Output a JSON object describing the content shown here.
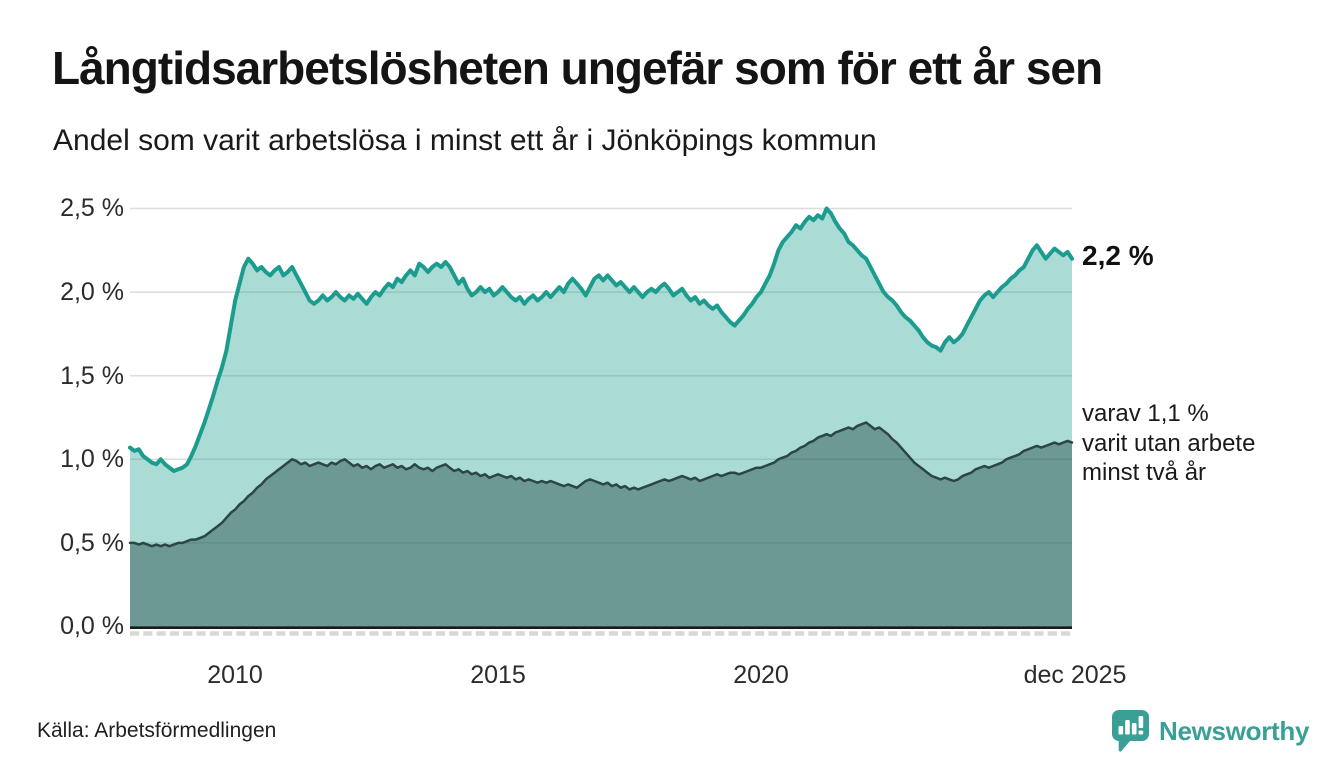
{
  "header": {
    "title": "Långtidsarbetslösheten ungefär som för ett år sen",
    "subtitle": "Andel som varit arbetslösa i minst ett år i Jönköpings kommun"
  },
  "chart_data": {
    "type": "area",
    "title": "Långtidsarbetslösheten ungefär som för ett år sen",
    "subtitle": "Andel som varit arbetslösa i minst ett år i Jönköpings kommun",
    "unit": "%",
    "x_start": "2008-01",
    "x_end": "2025-12",
    "x_frequency": "monthly",
    "ylim": [
      0,
      2.5
    ],
    "grid": "horizontal",
    "yticks": [
      {
        "value": 2.5,
        "label": "2,5 %"
      },
      {
        "value": 2.0,
        "label": "2,0 %"
      },
      {
        "value": 1.5,
        "label": "1,5 %"
      },
      {
        "value": 1.0,
        "label": "1,0 %"
      },
      {
        "value": 0.5,
        "label": "0,5 %"
      },
      {
        "value": 0.0,
        "label": "0,0 %"
      }
    ],
    "xticks": [
      {
        "month_index": 24,
        "label": "2010"
      },
      {
        "month_index": 84,
        "label": "2015"
      },
      {
        "month_index": 144,
        "label": "2020"
      },
      {
        "month_index": 215,
        "label": "dec 2025"
      }
    ],
    "colors": {
      "line_total": "#1b9c8e",
      "fill_total": "rgba(26,156,141,0.37)",
      "line_two_year": "#2b4742",
      "fill_two_year": "rgba(31,74,68,0.45)",
      "gridline": "#dcdcdc",
      "axis": "#1a1a1a",
      "minor_tick": "#d8d8d8",
      "brand_teal": "#3aa096"
    },
    "series": [
      {
        "name": "Andel som varit arbetslösa minst ett år",
        "color": "#1b9c8e",
        "fill": "rgba(26,156,141,0.37)",
        "end_value": 2.2,
        "end_value_label": "2,2 %",
        "values": [
          1.07,
          1.05,
          1.06,
          1.02,
          1.0,
          0.98,
          0.97,
          1.0,
          0.97,
          0.95,
          0.93,
          0.94,
          0.95,
          0.97,
          1.02,
          1.08,
          1.15,
          1.22,
          1.3,
          1.38,
          1.47,
          1.55,
          1.65,
          1.8,
          1.95,
          2.05,
          2.15,
          2.2,
          2.17,
          2.13,
          2.15,
          2.12,
          2.1,
          2.13,
          2.15,
          2.1,
          2.12,
          2.15,
          2.1,
          2.05,
          2.0,
          1.95,
          1.93,
          1.95,
          1.98,
          1.95,
          1.97,
          2.0,
          1.97,
          1.95,
          1.98,
          1.96,
          1.99,
          1.96,
          1.93,
          1.97,
          2.0,
          1.98,
          2.02,
          2.05,
          2.03,
          2.08,
          2.06,
          2.1,
          2.13,
          2.1,
          2.17,
          2.15,
          2.12,
          2.15,
          2.17,
          2.15,
          2.18,
          2.15,
          2.1,
          2.05,
          2.08,
          2.02,
          1.98,
          2.0,
          2.03,
          2.0,
          2.02,
          1.98,
          2.0,
          2.03,
          2.0,
          1.97,
          1.95,
          1.97,
          1.93,
          1.96,
          1.98,
          1.95,
          1.97,
          2.0,
          1.97,
          2.0,
          2.03,
          2.0,
          2.05,
          2.08,
          2.05,
          2.02,
          1.98,
          2.03,
          2.08,
          2.1,
          2.07,
          2.1,
          2.07,
          2.04,
          2.06,
          2.03,
          2.0,
          2.03,
          2.0,
          1.97,
          2.0,
          2.02,
          2.0,
          2.03,
          2.05,
          2.02,
          1.98,
          2.0,
          2.02,
          1.98,
          1.95,
          1.97,
          1.93,
          1.95,
          1.92,
          1.9,
          1.92,
          1.88,
          1.85,
          1.82,
          1.8,
          1.83,
          1.86,
          1.9,
          1.93,
          1.97,
          2.0,
          2.05,
          2.1,
          2.17,
          2.25,
          2.3,
          2.33,
          2.36,
          2.4,
          2.38,
          2.42,
          2.45,
          2.43,
          2.46,
          2.44,
          2.5,
          2.47,
          2.42,
          2.38,
          2.35,
          2.3,
          2.28,
          2.25,
          2.22,
          2.2,
          2.15,
          2.1,
          2.05,
          2.0,
          1.97,
          1.95,
          1.92,
          1.88,
          1.85,
          1.83,
          1.8,
          1.77,
          1.73,
          1.7,
          1.68,
          1.67,
          1.65,
          1.7,
          1.73,
          1.7,
          1.72,
          1.75,
          1.8,
          1.85,
          1.9,
          1.95,
          1.98,
          2.0,
          1.97,
          2.0,
          2.03,
          2.05,
          2.08,
          2.1,
          2.13,
          2.15,
          2.2,
          2.25,
          2.28,
          2.24,
          2.2,
          2.23,
          2.26,
          2.24,
          2.22,
          2.24,
          2.2
        ]
      },
      {
        "name": "Varav utan arbete minst två år",
        "color": "#2b4742",
        "fill": "rgba(31,74,68,0.45)",
        "end_value": 1.1,
        "end_annotation_lines": [
          "varav 1,1 %",
          "varit utan arbete",
          "minst två år"
        ],
        "values": [
          0.5,
          0.5,
          0.49,
          0.5,
          0.49,
          0.48,
          0.49,
          0.48,
          0.49,
          0.48,
          0.49,
          0.5,
          0.5,
          0.51,
          0.52,
          0.52,
          0.53,
          0.54,
          0.56,
          0.58,
          0.6,
          0.62,
          0.65,
          0.68,
          0.7,
          0.73,
          0.75,
          0.78,
          0.8,
          0.83,
          0.85,
          0.88,
          0.9,
          0.92,
          0.94,
          0.96,
          0.98,
          1.0,
          0.99,
          0.97,
          0.98,
          0.96,
          0.97,
          0.98,
          0.97,
          0.96,
          0.98,
          0.97,
          0.99,
          1.0,
          0.98,
          0.96,
          0.97,
          0.95,
          0.96,
          0.94,
          0.96,
          0.97,
          0.95,
          0.96,
          0.97,
          0.95,
          0.96,
          0.94,
          0.95,
          0.97,
          0.95,
          0.94,
          0.95,
          0.93,
          0.95,
          0.96,
          0.97,
          0.95,
          0.93,
          0.94,
          0.92,
          0.93,
          0.91,
          0.92,
          0.9,
          0.91,
          0.89,
          0.9,
          0.91,
          0.9,
          0.89,
          0.9,
          0.88,
          0.89,
          0.87,
          0.88,
          0.87,
          0.86,
          0.87,
          0.86,
          0.87,
          0.86,
          0.85,
          0.84,
          0.85,
          0.84,
          0.83,
          0.85,
          0.87,
          0.88,
          0.87,
          0.86,
          0.85,
          0.86,
          0.84,
          0.85,
          0.83,
          0.84,
          0.82,
          0.83,
          0.82,
          0.83,
          0.84,
          0.85,
          0.86,
          0.87,
          0.88,
          0.87,
          0.88,
          0.89,
          0.9,
          0.89,
          0.88,
          0.89,
          0.87,
          0.88,
          0.89,
          0.9,
          0.91,
          0.9,
          0.91,
          0.92,
          0.92,
          0.91,
          0.92,
          0.93,
          0.94,
          0.95,
          0.95,
          0.96,
          0.97,
          0.98,
          1.0,
          1.01,
          1.02,
          1.04,
          1.05,
          1.07,
          1.08,
          1.1,
          1.11,
          1.13,
          1.14,
          1.15,
          1.14,
          1.16,
          1.17,
          1.18,
          1.19,
          1.18,
          1.2,
          1.21,
          1.22,
          1.2,
          1.18,
          1.19,
          1.17,
          1.15,
          1.12,
          1.1,
          1.07,
          1.04,
          1.01,
          0.98,
          0.96,
          0.94,
          0.92,
          0.9,
          0.89,
          0.88,
          0.89,
          0.88,
          0.87,
          0.88,
          0.9,
          0.91,
          0.92,
          0.94,
          0.95,
          0.96,
          0.95,
          0.96,
          0.97,
          0.98,
          1.0,
          1.01,
          1.02,
          1.03,
          1.05,
          1.06,
          1.07,
          1.08,
          1.07,
          1.08,
          1.09,
          1.1,
          1.09,
          1.1,
          1.11,
          1.1
        ]
      }
    ]
  },
  "footer": {
    "source": "Källa: Arbetsförmedlingen",
    "brand": "Newsworthy"
  }
}
